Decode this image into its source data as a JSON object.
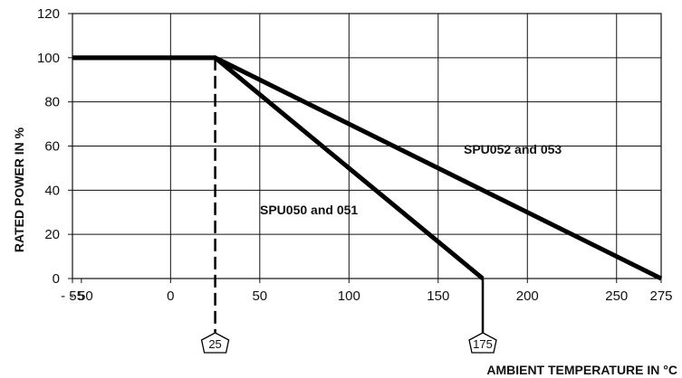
{
  "chart_data": {
    "type": "line",
    "title": "",
    "xlabel": "AMBIENT TEMPERATURE IN °C",
    "ylabel": "RATED POWER IN %",
    "xlim": [
      -55,
      275
    ],
    "ylim": [
      0,
      120
    ],
    "x_ticks": [
      {
        "value": -55,
        "label": "- 55"
      },
      {
        "value": -50,
        "label": "- 50"
      },
      {
        "value": 0,
        "label": "0"
      },
      {
        "value": 50,
        "label": "50"
      },
      {
        "value": 100,
        "label": "100"
      },
      {
        "value": 150,
        "label": "150"
      },
      {
        "value": 200,
        "label": "200"
      },
      {
        "value": 250,
        "label": "250"
      },
      {
        "value": 275,
        "label": "275"
      }
    ],
    "y_ticks": [
      0,
      20,
      40,
      60,
      80,
      100,
      120
    ],
    "grid": true,
    "series": [
      {
        "name": "SPU050 and 051",
        "x": [
          -55,
          25,
          175
        ],
        "y": [
          100,
          100,
          0
        ]
      },
      {
        "name": "SPU052 and 053",
        "x": [
          -55,
          25,
          275
        ],
        "y": [
          100,
          100,
          0
        ]
      }
    ],
    "markers": [
      {
        "x": 25,
        "label": "25",
        "line": "dashed"
      },
      {
        "x": 175,
        "label": "175",
        "line": "solid"
      }
    ]
  }
}
